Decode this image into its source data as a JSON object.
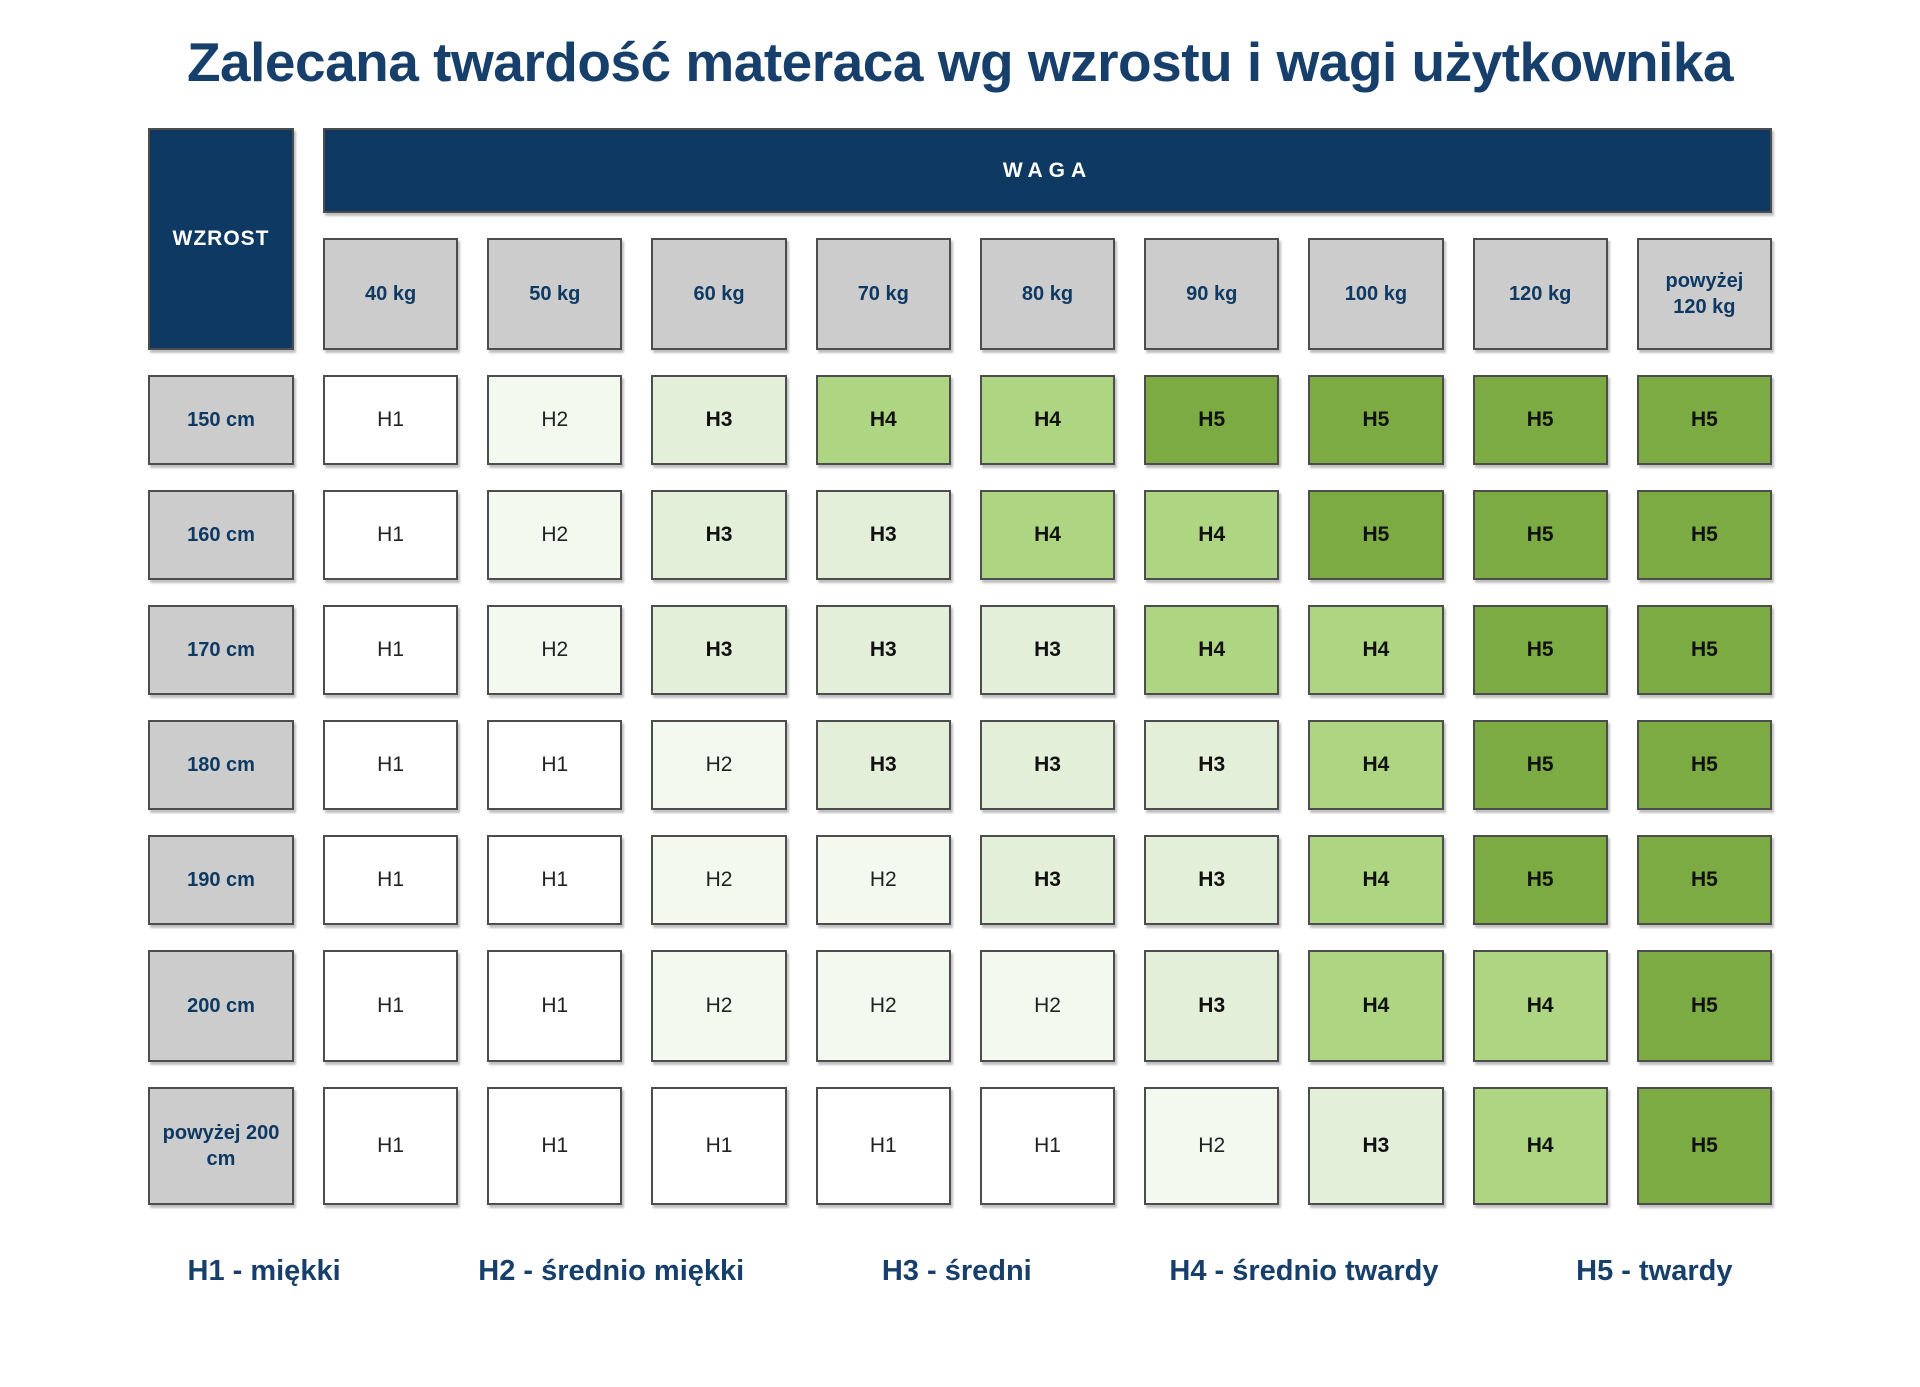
{
  "title": "Zalecana twardość materaca wg wzrostu i wagi użytkownika",
  "table": {
    "corner_label": "WZROST",
    "weight_header": "WAGA",
    "columns": [
      "40 kg",
      "50 kg",
      "60 kg",
      "70 kg",
      "80 kg",
      "90 kg",
      "100 kg",
      "120 kg",
      "powyżej 120 kg"
    ],
    "rows": [
      {
        "height": "150 cm",
        "values": [
          "H1",
          "H2",
          "H3",
          "H4",
          "H4",
          "H5",
          "H5",
          "H5",
          "H5"
        ]
      },
      {
        "height": "160 cm",
        "values": [
          "H1",
          "H2",
          "H3",
          "H3",
          "H4",
          "H4",
          "H5",
          "H5",
          "H5"
        ]
      },
      {
        "height": "170 cm",
        "values": [
          "H1",
          "H2",
          "H3",
          "H3",
          "H3",
          "H4",
          "H4",
          "H5",
          "H5"
        ]
      },
      {
        "height": "180 cm",
        "values": [
          "H1",
          "H1",
          "H2",
          "H3",
          "H3",
          "H3",
          "H4",
          "H5",
          "H5"
        ]
      },
      {
        "height": "190 cm",
        "values": [
          "H1",
          "H1",
          "H2",
          "H2",
          "H3",
          "H3",
          "H4",
          "H5",
          "H5"
        ]
      },
      {
        "height": "200 cm",
        "values": [
          "H1",
          "H1",
          "H2",
          "H2",
          "H2",
          "H3",
          "H4",
          "H4",
          "H5"
        ]
      },
      {
        "height": "powyżej 200 cm",
        "values": [
          "H1",
          "H1",
          "H1",
          "H1",
          "H1",
          "H2",
          "H3",
          "H4",
          "H5"
        ]
      }
    ]
  },
  "legend": {
    "items": [
      {
        "code": "H1",
        "label": "H1 - miękki"
      },
      {
        "code": "H2",
        "label": "H2 - średnio miękki"
      },
      {
        "code": "H3",
        "label": "H3 - średni"
      },
      {
        "code": "H4",
        "label": "H4 - średnio twardy"
      },
      {
        "code": "H5",
        "label": "H5 - twardy"
      }
    ]
  },
  "colors": {
    "navy": "#0e3963",
    "title_navy": "#173f6b",
    "header_gray": "#cccccc",
    "border": "#4d4d4d",
    "H1": "#ffffff",
    "H2": "#f3f9ee",
    "H3": "#e4efda",
    "H4": "#aed581",
    "H5": "#7cab43"
  },
  "chart_data": {
    "type": "heatmap",
    "title": "Zalecana twardość materaca wg wzrostu i wagi użytkownika",
    "xlabel": "WAGA",
    "ylabel": "WZROST",
    "x_categories": [
      "40 kg",
      "50 kg",
      "60 kg",
      "70 kg",
      "80 kg",
      "90 kg",
      "100 kg",
      "120 kg",
      "powyżej 120 kg"
    ],
    "y_categories": [
      "150 cm",
      "160 cm",
      "170 cm",
      "180 cm",
      "190 cm",
      "200 cm",
      "powyżej 200 cm"
    ],
    "values": [
      [
        "H1",
        "H2",
        "H3",
        "H4",
        "H4",
        "H5",
        "H5",
        "H5",
        "H5"
      ],
      [
        "H1",
        "H2",
        "H3",
        "H3",
        "H4",
        "H4",
        "H5",
        "H5",
        "H5"
      ],
      [
        "H1",
        "H2",
        "H3",
        "H3",
        "H3",
        "H4",
        "H4",
        "H5",
        "H5"
      ],
      [
        "H1",
        "H1",
        "H2",
        "H3",
        "H3",
        "H3",
        "H4",
        "H5",
        "H5"
      ],
      [
        "H1",
        "H1",
        "H2",
        "H2",
        "H3",
        "H3",
        "H4",
        "H5",
        "H5"
      ],
      [
        "H1",
        "H1",
        "H2",
        "H2",
        "H2",
        "H3",
        "H4",
        "H4",
        "H5"
      ],
      [
        "H1",
        "H1",
        "H1",
        "H1",
        "H1",
        "H2",
        "H3",
        "H4",
        "H5"
      ]
    ],
    "value_colors": {
      "H1": "#ffffff",
      "H2": "#f3f9ee",
      "H3": "#e4efda",
      "H4": "#aed581",
      "H5": "#7cab43"
    },
    "legend_entries": [
      "H1 - miękki",
      "H2 - średnio miękki",
      "H3 - średni",
      "H4 - średnio twardy",
      "H5 - twardy"
    ],
    "legend_position": "bottom",
    "grid": false
  }
}
